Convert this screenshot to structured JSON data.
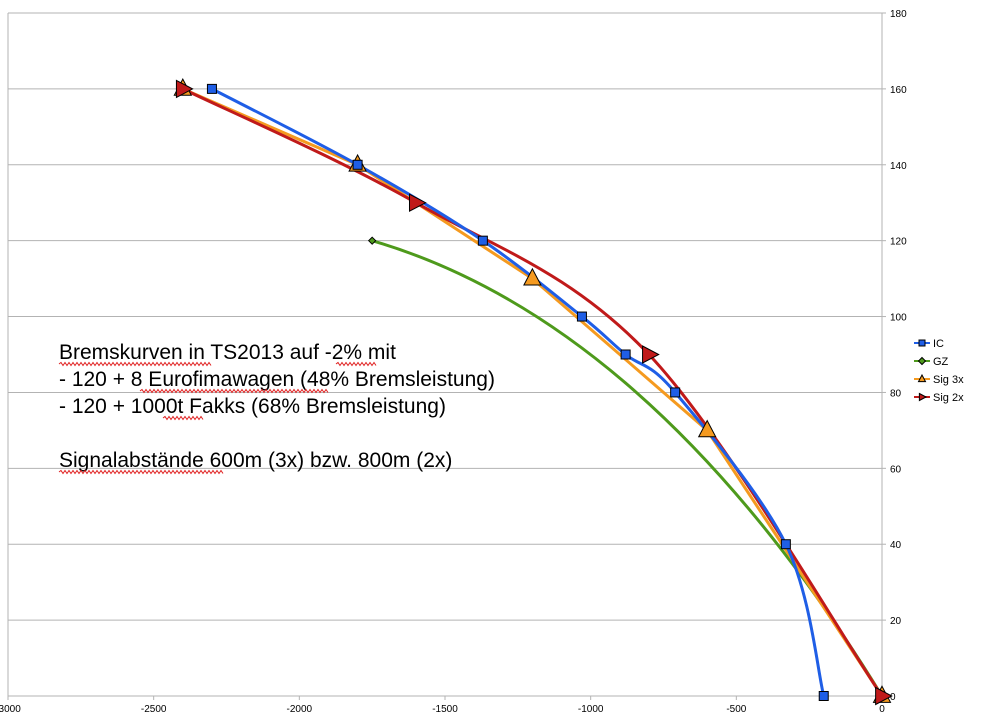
{
  "chart_data": {
    "type": "scatter",
    "title": "",
    "xlabel": "",
    "ylabel": "",
    "xlim": [
      -3000,
      0
    ],
    "ylim": [
      0,
      180
    ],
    "x_ticks": [
      -3000,
      -2500,
      -2000,
      -1500,
      -1000,
      -500,
      0
    ],
    "x_tick_labels": [
      "-3000",
      "-2500",
      "-2000",
      "-1500",
      "-1000",
      "-500",
      "0"
    ],
    "y_ticks": [
      0,
      20,
      40,
      60,
      80,
      100,
      120,
      140,
      160,
      180
    ],
    "y_tick_labels": [
      "0",
      "20",
      "40",
      "60",
      "80",
      "100",
      "120",
      "140",
      "160",
      "180"
    ],
    "grid": "horizontal",
    "legend_position": "right",
    "series": [
      {
        "name": "IC",
        "color": "#1f5ee6",
        "marker": "square",
        "points": [
          [
            -2300,
            160
          ],
          [
            -1800,
            140
          ],
          [
            -1370,
            120
          ],
          [
            -1030,
            100
          ],
          [
            -880,
            90
          ],
          [
            -710,
            80
          ],
          [
            -330,
            40
          ],
          [
            -200,
            0
          ]
        ]
      },
      {
        "name": "GZ",
        "color": "#4e9a1c",
        "marker": "diamond",
        "points": [
          [
            -1750,
            120
          ],
          [
            0,
            0
          ]
        ]
      },
      {
        "name": "Sig 3x",
        "color": "#f59a1f",
        "marker": "triangle",
        "points": [
          [
            -2400,
            160
          ],
          [
            -1800,
            140
          ],
          [
            -1200,
            110
          ],
          [
            -600,
            70
          ],
          [
            0,
            0
          ]
        ]
      },
      {
        "name": "Sig 2x",
        "color": "#c01a1a",
        "marker": "triangle-right",
        "points": [
          [
            -2400,
            160
          ],
          [
            -1600,
            130
          ],
          [
            -800,
            90
          ],
          [
            0,
            0
          ]
        ]
      }
    ],
    "annotations": [
      "Bremskurven in TS2013 auf -2% mit",
      "- 120 + 8 Eurofimawagen (48% Bremsleistung)",
      "- 120 + 1000t Fakks (68% Bremsleistung)",
      "",
      "Signalabstände 600m (3x) bzw. 800m (2x)"
    ]
  }
}
